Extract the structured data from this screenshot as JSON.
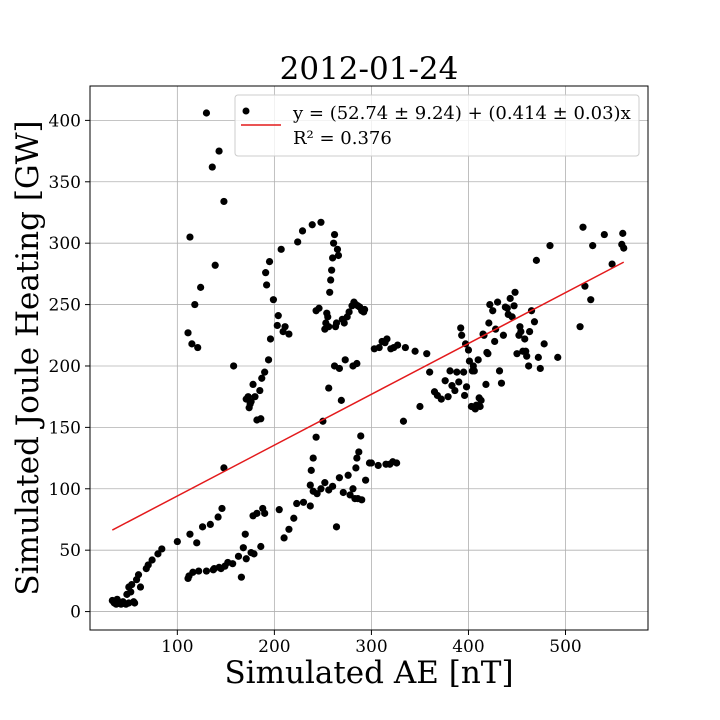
{
  "chart_data": {
    "type": "scatter",
    "title": "2012-01-24",
    "xlabel": "Simulated AE [nT]",
    "ylabel": "Simulated Joule Heating [GW]",
    "xlim": [
      10,
      585
    ],
    "ylim": [
      -15,
      428
    ],
    "xticks": [
      100,
      200,
      300,
      400,
      500
    ],
    "yticks": [
      0,
      50,
      100,
      150,
      200,
      250,
      300,
      350,
      400
    ],
    "grid": true,
    "legend_position": "top-right",
    "legend": {
      "scatter_label": "",
      "fit_label": "y = (52.74 ± 9.24) + (0.414 ± 0.03)x",
      "r2_label": "R² = 0.376"
    },
    "colors": {
      "points": "#000000",
      "fit_line": "#e31a1c",
      "grid": "#b0b0b0"
    },
    "fit": {
      "intercept": 52.74,
      "slope": 0.414,
      "x_range": [
        33,
        560
      ]
    },
    "points": [
      [
        33,
        9
      ],
      [
        35,
        7
      ],
      [
        36,
        8
      ],
      [
        37,
        6
      ],
      [
        38,
        10
      ],
      [
        40,
        7
      ],
      [
        42,
        6
      ],
      [
        44,
        8
      ],
      [
        45,
        7
      ],
      [
        47,
        6
      ],
      [
        48,
        14
      ],
      [
        50,
        20
      ],
      [
        50,
        7
      ],
      [
        52,
        16
      ],
      [
        53,
        22
      ],
      [
        55,
        8
      ],
      [
        56,
        7
      ],
      [
        58,
        26
      ],
      [
        60,
        30
      ],
      [
        62,
        20
      ],
      [
        68,
        35
      ],
      [
        70,
        38
      ],
      [
        74,
        42
      ],
      [
        80,
        47
      ],
      [
        84,
        51
      ],
      [
        100,
        57
      ],
      [
        111,
        27
      ],
      [
        112,
        29
      ],
      [
        113,
        63
      ],
      [
        116,
        32
      ],
      [
        120,
        56
      ],
      [
        122,
        33
      ],
      [
        126,
        69
      ],
      [
        130,
        33
      ],
      [
        134,
        71
      ],
      [
        137,
        34
      ],
      [
        138,
        35
      ],
      [
        142,
        77
      ],
      [
        143,
        36
      ],
      [
        145,
        35
      ],
      [
        146,
        84
      ],
      [
        149,
        37
      ],
      [
        152,
        40
      ],
      [
        157,
        39
      ],
      [
        163,
        45
      ],
      [
        166,
        28
      ],
      [
        168,
        52
      ],
      [
        170,
        63
      ],
      [
        171,
        43
      ],
      [
        176,
        48
      ],
      [
        178,
        78
      ],
      [
        179,
        47
      ],
      [
        182,
        80
      ],
      [
        186,
        53
      ],
      [
        188,
        84
      ],
      [
        190,
        80
      ],
      [
        205,
        83
      ],
      [
        210,
        60
      ],
      [
        215,
        67
      ],
      [
        220,
        76
      ],
      [
        223,
        88
      ],
      [
        230,
        89
      ],
      [
        237,
        86
      ],
      [
        240,
        98
      ],
      [
        244,
        96
      ],
      [
        248,
        100
      ],
      [
        252,
        105
      ],
      [
        256,
        99
      ],
      [
        260,
        102
      ],
      [
        264,
        69
      ],
      [
        267,
        109
      ],
      [
        271,
        97
      ],
      [
        276,
        111
      ],
      [
        278,
        95
      ],
      [
        283,
        92
      ],
      [
        286,
        92
      ],
      [
        290,
        91
      ],
      [
        294,
        107
      ],
      [
        300,
        121
      ],
      [
        237,
        103
      ],
      [
        238,
        115
      ],
      [
        240,
        125
      ],
      [
        243,
        142
      ],
      [
        250,
        155
      ],
      [
        281,
        100
      ],
      [
        284,
        117
      ],
      [
        285,
        125
      ],
      [
        287,
        130
      ],
      [
        289,
        143
      ],
      [
        298,
        121
      ],
      [
        307,
        119
      ],
      [
        315,
        120
      ],
      [
        319,
        120
      ],
      [
        322,
        122
      ],
      [
        326,
        121
      ],
      [
        111,
        227
      ],
      [
        113,
        305
      ],
      [
        115,
        218
      ],
      [
        118,
        250
      ],
      [
        121,
        215
      ],
      [
        124,
        264
      ],
      [
        130,
        406
      ],
      [
        136,
        362
      ],
      [
        139,
        282
      ],
      [
        143,
        375
      ],
      [
        148,
        334
      ],
      [
        148,
        117
      ],
      [
        158,
        200
      ],
      [
        171,
        173
      ],
      [
        173,
        175
      ],
      [
        174,
        166
      ],
      [
        175,
        169
      ],
      [
        176,
        171
      ],
      [
        178,
        185
      ],
      [
        180,
        175
      ],
      [
        182,
        156
      ],
      [
        185,
        180
      ],
      [
        186,
        157
      ],
      [
        187,
        190
      ],
      [
        190,
        195
      ],
      [
        191,
        276
      ],
      [
        192,
        266
      ],
      [
        194,
        205
      ],
      [
        195,
        285
      ],
      [
        196,
        222
      ],
      [
        199,
        254
      ],
      [
        203,
        233
      ],
      [
        204,
        241
      ],
      [
        207,
        295
      ],
      [
        209,
        228
      ],
      [
        211,
        232
      ],
      [
        215,
        226
      ],
      [
        224,
        301
      ],
      [
        229,
        310
      ],
      [
        239,
        315
      ],
      [
        243,
        245
      ],
      [
        246,
        247
      ],
      [
        248,
        317
      ],
      [
        252,
        230
      ],
      [
        253,
        235
      ],
      [
        254,
        243
      ],
      [
        255,
        240
      ],
      [
        256,
        232
      ],
      [
        257,
        260
      ],
      [
        258,
        270
      ],
      [
        259,
        278
      ],
      [
        260,
        288
      ],
      [
        261,
        300
      ],
      [
        262,
        307
      ],
      [
        263,
        232
      ],
      [
        264,
        235
      ],
      [
        265,
        295
      ],
      [
        266,
        290
      ],
      [
        270,
        238
      ],
      [
        272,
        235
      ],
      [
        275,
        240
      ],
      [
        277,
        244
      ],
      [
        280,
        249
      ],
      [
        282,
        252
      ],
      [
        284,
        250
      ],
      [
        286,
        249
      ],
      [
        288,
        248
      ],
      [
        290,
        245
      ],
      [
        292,
        244
      ],
      [
        293,
        246
      ],
      [
        256,
        182
      ],
      [
        262,
        200
      ],
      [
        267,
        198
      ],
      [
        269,
        172
      ],
      [
        273,
        205
      ],
      [
        281,
        200
      ],
      [
        285,
        202
      ],
      [
        303,
        214
      ],
      [
        308,
        215
      ],
      [
        311,
        220
      ],
      [
        314,
        219
      ],
      [
        316,
        222
      ],
      [
        320,
        214
      ],
      [
        323,
        215
      ],
      [
        327,
        217
      ],
      [
        335,
        215
      ],
      [
        345,
        212
      ],
      [
        357,
        210
      ],
      [
        333,
        155
      ],
      [
        350,
        167
      ],
      [
        360,
        195
      ],
      [
        365,
        179
      ],
      [
        368,
        176
      ],
      [
        372,
        173
      ],
      [
        376,
        188
      ],
      [
        379,
        175
      ],
      [
        381,
        196
      ],
      [
        383,
        184
      ],
      [
        386,
        180
      ],
      [
        388,
        195
      ],
      [
        390,
        187
      ],
      [
        392,
        231
      ],
      [
        393,
        225
      ],
      [
        395,
        195
      ],
      [
        396,
        176
      ],
      [
        397,
        218
      ],
      [
        398,
        183
      ],
      [
        400,
        213
      ],
      [
        401,
        204
      ],
      [
        403,
        167
      ],
      [
        404,
        196
      ],
      [
        405,
        200
      ],
      [
        406,
        196
      ],
      [
        407,
        165
      ],
      [
        408,
        168
      ],
      [
        410,
        205
      ],
      [
        411,
        174
      ],
      [
        412,
        167
      ],
      [
        413,
        172
      ],
      [
        415,
        226
      ],
      [
        416,
        225
      ],
      [
        418,
        185
      ],
      [
        419,
        211
      ],
      [
        420,
        210
      ],
      [
        421,
        235
      ],
      [
        422,
        250
      ],
      [
        425,
        245
      ],
      [
        427,
        220
      ],
      [
        428,
        230
      ],
      [
        430,
        252
      ],
      [
        432,
        196
      ],
      [
        434,
        186
      ],
      [
        436,
        225
      ],
      [
        438,
        248
      ],
      [
        440,
        247
      ],
      [
        441,
        242
      ],
      [
        443,
        255
      ],
      [
        445,
        240
      ],
      [
        447,
        249
      ],
      [
        448,
        260
      ],
      [
        450,
        210
      ],
      [
        452,
        225
      ],
      [
        453,
        232
      ],
      [
        454,
        228
      ],
      [
        456,
        212
      ],
      [
        458,
        222
      ],
      [
        459,
        212
      ],
      [
        460,
        208
      ],
      [
        462,
        200
      ],
      [
        463,
        228
      ],
      [
        465,
        245
      ],
      [
        468,
        236
      ],
      [
        470,
        286
      ],
      [
        472,
        207
      ],
      [
        474,
        198
      ],
      [
        478,
        218
      ],
      [
        484,
        298
      ],
      [
        492,
        207
      ],
      [
        515,
        232
      ],
      [
        518,
        313
      ],
      [
        520,
        265
      ],
      [
        526,
        254
      ],
      [
        528,
        298
      ],
      [
        540,
        307
      ],
      [
        548,
        283
      ],
      [
        558,
        299
      ],
      [
        559,
        308
      ],
      [
        560,
        296
      ]
    ]
  }
}
